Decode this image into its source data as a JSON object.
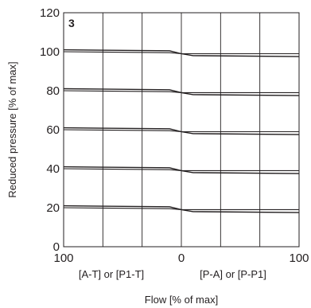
{
  "chart_data": {
    "type": "line",
    "panel_label": "3",
    "xlabel": "Flow [% of max]",
    "ylabel": "Reduced pressure [% of max]",
    "x_tick_labels": [
      "100",
      "0",
      "100"
    ],
    "x_range": [
      -100,
      100
    ],
    "x_category_labels": [
      "[A-T] or [P1-T]",
      "[P-A] or [P-P1]"
    ],
    "y_ticks": [
      0,
      20,
      40,
      60,
      80,
      100,
      120
    ],
    "ylim": [
      0,
      120
    ],
    "grid": true,
    "x": [
      -100,
      -10,
      0,
      10,
      100
    ],
    "series": [
      {
        "values": [
          101,
          100.5,
          99,
          98,
          97.5
        ]
      },
      {
        "values": [
          100,
          99.5,
          99,
          99,
          99
        ]
      },
      {
        "values": [
          81,
          80.5,
          79,
          78,
          77.5
        ]
      },
      {
        "values": [
          80,
          79.5,
          79,
          79,
          79
        ]
      },
      {
        "values": [
          61,
          60.5,
          59,
          58,
          57.5
        ]
      },
      {
        "values": [
          60,
          59.5,
          59,
          59,
          59
        ]
      },
      {
        "values": [
          41,
          40.5,
          39,
          38,
          37.5
        ]
      },
      {
        "values": [
          40,
          39.5,
          39,
          39,
          39
        ]
      },
      {
        "values": [
          21,
          20.5,
          19,
          18,
          17.5
        ]
      },
      {
        "values": [
          20,
          19.5,
          19,
          19,
          19
        ]
      }
    ],
    "line_color": "#231f20",
    "grid_color": "#231f20"
  }
}
